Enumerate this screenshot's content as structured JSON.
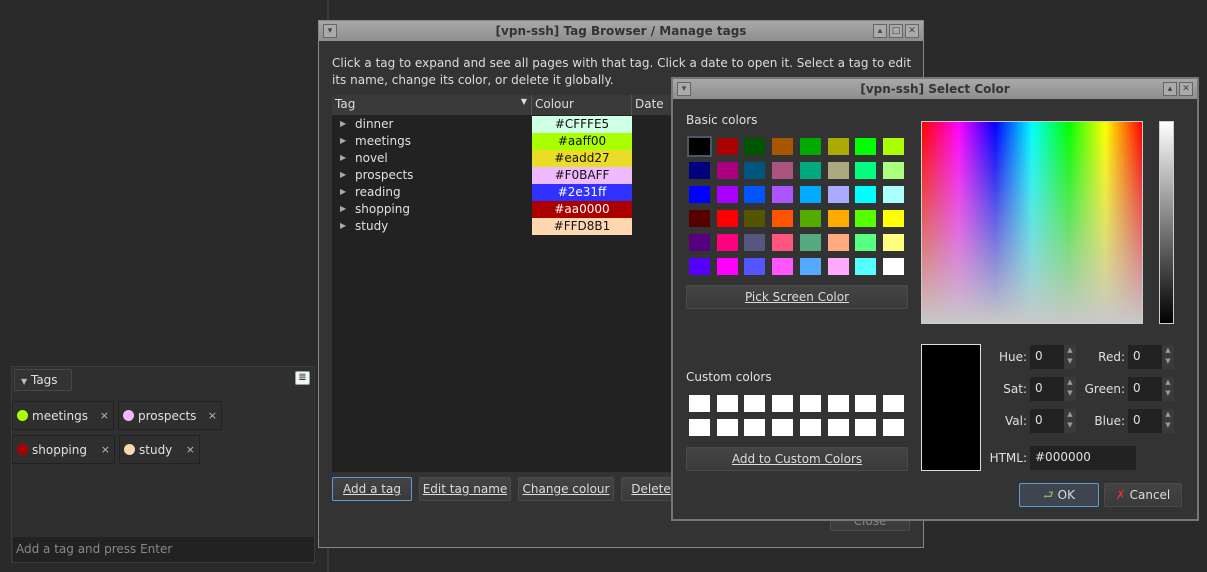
{
  "tags_panel": {
    "header": "Tags",
    "chips": [
      {
        "label": "meetings",
        "color": "#aaff00"
      },
      {
        "label": "prospects",
        "color": "#F0BAFF"
      },
      {
        "label": "shopping",
        "color": "#aa0000"
      },
      {
        "label": "study",
        "color": "#FFD8B1"
      }
    ],
    "remove_glyph": "×",
    "input_placeholder": "Add a tag and press Enter"
  },
  "tag_browser": {
    "title": "[vpn-ssh] Tag Browser / Manage tags",
    "description": "Click a tag to expand and see all pages with that tag. Click a date to open it. Select a tag to edit its name, change its color, or delete it globally.",
    "columns": [
      "Tag",
      "Colour",
      "Date"
    ],
    "rows": [
      {
        "tag": "dinner",
        "colour": "#CFFFE5",
        "text_color": "#111"
      },
      {
        "tag": "meetings",
        "colour": "#aaff00",
        "text_color": "#111"
      },
      {
        "tag": "novel",
        "colour": "#eadd27",
        "text_color": "#111"
      },
      {
        "tag": "prospects",
        "colour": "#F0BAFF",
        "text_color": "#111"
      },
      {
        "tag": "reading",
        "colour": "#2e31ff",
        "text_color": "#fff"
      },
      {
        "tag": "shopping",
        "colour": "#aa0000",
        "text_color": "#fff"
      },
      {
        "tag": "study",
        "colour": "#FFD8B1",
        "text_color": "#111"
      }
    ],
    "buttons": {
      "add": "Add a tag",
      "edit": "Edit tag name",
      "change": "Change colour",
      "delete": "Delete",
      "close": "Close"
    }
  },
  "color_dialog": {
    "title": "[vpn-ssh] Select Color",
    "basic_label": "Basic colors",
    "custom_label": "Custom colors",
    "basic_colors": [
      "#000000",
      "#aa0000",
      "#005500",
      "#aa5500",
      "#00aa00",
      "#aaaa00",
      "#00ff00",
      "#aaff00",
      "#00007f",
      "#aa007f",
      "#00557f",
      "#aa557f",
      "#00aa7f",
      "#aaaa7f",
      "#00ff7f",
      "#aaff7f",
      "#0000ff",
      "#aa00ff",
      "#0055ff",
      "#aa55ff",
      "#00aaff",
      "#aaaaff",
      "#00ffff",
      "#aaffff",
      "#550000",
      "#ff0000",
      "#555500",
      "#ff5500",
      "#55aa00",
      "#ffaa00",
      "#55ff00",
      "#ffff00",
      "#55007f",
      "#ff007f",
      "#55557f",
      "#ff557f",
      "#55aa7f",
      "#ffaa7f",
      "#55ff7f",
      "#ffff7f",
      "#5500ff",
      "#ff00ff",
      "#5555ff",
      "#ff55ff",
      "#55aaff",
      "#ffaaff",
      "#55ffff",
      "#ffffff"
    ],
    "pick_screen": "Pick Screen Color",
    "add_custom": "Add to Custom Colors",
    "fields": {
      "hue_label": "Hue:",
      "hue": "0",
      "sat_label": "Sat:",
      "sat": "0",
      "val_label": "Val:",
      "val": "0",
      "red_label": "Red:",
      "red": "0",
      "green_label": "Green:",
      "green": "0",
      "blue_label": "Blue:",
      "blue": "0",
      "html_label": "HTML:",
      "html": "#000000"
    },
    "current_color": "#000000",
    "ok": "OK",
    "cancel": "Cancel"
  }
}
